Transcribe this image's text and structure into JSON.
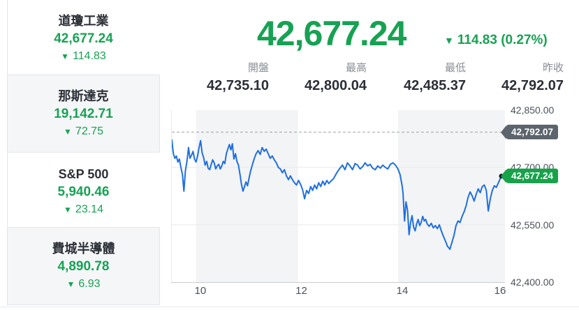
{
  "icons": {
    "down_triangle": "▼"
  },
  "colors": {
    "green": "#17a253",
    "line_blue": "#1e6fe0",
    "badge_dark": "#5c646d",
    "badge_green": "#18a24b",
    "band": "#f3f4f5",
    "grid": "#e9eaec",
    "dashed": "#9aa0a8",
    "dot": "#17191c"
  },
  "sidebar": {
    "items": [
      {
        "name": "道瓊工業",
        "value": "42,677.24",
        "change": "114.83"
      },
      {
        "name": "那斯達克",
        "value": "19,142.71",
        "change": "72.75"
      },
      {
        "name": "S&P 500",
        "value": "5,940.46",
        "change": "23.14"
      },
      {
        "name": "費城半導體",
        "value": "4,890.78",
        "change": "6.93"
      }
    ]
  },
  "headline": {
    "value": "42,677.24",
    "change": "114.83 (0.27%)"
  },
  "stats": {
    "items": [
      {
        "label": "開盤",
        "value": "42,735.10"
      },
      {
        "label": "最高",
        "value": "42,800.04"
      },
      {
        "label": "最低",
        "value": "42,485.37"
      },
      {
        "label": "昨收",
        "value": "42,792.07"
      }
    ]
  },
  "chart_data": {
    "type": "line",
    "title": "道瓊工業",
    "xlabel": "",
    "ylabel": "",
    "x_domain": [
      9.42,
      16.02
    ],
    "y_domain": [
      42400,
      42850
    ],
    "x_ticks": [
      10,
      12,
      14,
      16
    ],
    "y_ticks": [
      {
        "value": 42850,
        "label": "42,850.00",
        "grid": false
      },
      {
        "value": 42700,
        "label": "42,700.00",
        "grid": true
      },
      {
        "value": 42550,
        "label": "42,550.00",
        "grid": true
      },
      {
        "value": 42400,
        "label": "42,400.00",
        "grid": false
      }
    ],
    "bands": [
      [
        9.9,
        11.92
      ],
      [
        13.9,
        16.02
      ]
    ],
    "prev_close": 42792.07,
    "prev_close_label": "42,792.07",
    "last": 42677.24,
    "last_label": "42,677.24",
    "series": [
      {
        "name": "道瓊工業",
        "points": [
          [
            9.42,
            42772
          ],
          [
            9.45,
            42736
          ],
          [
            9.48,
            42724
          ],
          [
            9.51,
            42730
          ],
          [
            9.54,
            42714
          ],
          [
            9.57,
            42722
          ],
          [
            9.6,
            42700
          ],
          [
            9.63,
            42682
          ],
          [
            9.66,
            42638
          ],
          [
            9.69,
            42692
          ],
          [
            9.72,
            42716
          ],
          [
            9.75,
            42752
          ],
          [
            9.78,
            42724
          ],
          [
            9.81,
            42732
          ],
          [
            9.84,
            42742
          ],
          [
            9.87,
            42722
          ],
          [
            9.9,
            42714
          ],
          [
            9.93,
            42730
          ],
          [
            9.96,
            42752
          ],
          [
            9.99,
            42770
          ],
          [
            10.02,
            42738
          ],
          [
            10.05,
            42726
          ],
          [
            10.08,
            42706
          ],
          [
            10.11,
            42716
          ],
          [
            10.14,
            42698
          ],
          [
            10.17,
            42694
          ],
          [
            10.2,
            42708
          ],
          [
            10.23,
            42720
          ],
          [
            10.26,
            42712
          ],
          [
            10.29,
            42696
          ],
          [
            10.32,
            42704
          ],
          [
            10.35,
            42708
          ],
          [
            10.38,
            42696
          ],
          [
            10.41,
            42704
          ],
          [
            10.44,
            42716
          ],
          [
            10.47,
            42710
          ],
          [
            10.5,
            42736
          ],
          [
            10.53,
            42748
          ],
          [
            10.56,
            42760
          ],
          [
            10.59,
            42746
          ],
          [
            10.62,
            42762
          ],
          [
            10.65,
            42722
          ],
          [
            10.68,
            42736
          ],
          [
            10.71,
            42716
          ],
          [
            10.74,
            42706
          ],
          [
            10.77,
            42682
          ],
          [
            10.8,
            42656
          ],
          [
            10.83,
            42638
          ],
          [
            10.86,
            42650
          ],
          [
            10.89,
            42662
          ],
          [
            10.92,
            42652
          ],
          [
            10.95,
            42672
          ],
          [
            10.98,
            42690
          ],
          [
            11.01,
            42704
          ],
          [
            11.05,
            42722
          ],
          [
            11.09,
            42736
          ],
          [
            11.13,
            42744
          ],
          [
            11.17,
            42734
          ],
          [
            11.21,
            42752
          ],
          [
            11.25,
            42742
          ],
          [
            11.29,
            42748
          ],
          [
            11.33,
            42736
          ],
          [
            11.37,
            42724
          ],
          [
            11.41,
            42730
          ],
          [
            11.45,
            42720
          ],
          [
            11.49,
            42712
          ],
          [
            11.53,
            42700
          ],
          [
            11.57,
            42696
          ],
          [
            11.61,
            42686
          ],
          [
            11.65,
            42694
          ],
          [
            11.69,
            42678
          ],
          [
            11.73,
            42668
          ],
          [
            11.77,
            42678
          ],
          [
            11.81,
            42668
          ],
          [
            11.85,
            42660
          ],
          [
            11.89,
            42654
          ],
          [
            11.93,
            42666
          ],
          [
            11.97,
            42656
          ],
          [
            12.01,
            42642
          ],
          [
            12.05,
            42618
          ],
          [
            12.09,
            42640
          ],
          [
            12.13,
            42632
          ],
          [
            12.17,
            42650
          ],
          [
            12.21,
            42640
          ],
          [
            12.25,
            42654
          ],
          [
            12.29,
            42644
          ],
          [
            12.33,
            42660
          ],
          [
            12.37,
            42650
          ],
          [
            12.41,
            42664
          ],
          [
            12.45,
            42654
          ],
          [
            12.49,
            42666
          ],
          [
            12.53,
            42658
          ],
          [
            12.57,
            42664
          ],
          [
            12.62,
            42670
          ],
          [
            12.68,
            42684
          ],
          [
            12.74,
            42696
          ],
          [
            12.8,
            42706
          ],
          [
            12.85,
            42694
          ],
          [
            12.9,
            42712
          ],
          [
            12.95,
            42704
          ],
          [
            13.0,
            42694
          ],
          [
            13.05,
            42710
          ],
          [
            13.1,
            42706
          ],
          [
            13.15,
            42696
          ],
          [
            13.2,
            42702
          ],
          [
            13.25,
            42712
          ],
          [
            13.3,
            42704
          ],
          [
            13.35,
            42708
          ],
          [
            13.4,
            42698
          ],
          [
            13.45,
            42694
          ],
          [
            13.5,
            42704
          ],
          [
            13.55,
            42698
          ],
          [
            13.6,
            42706
          ],
          [
            13.65,
            42700
          ],
          [
            13.7,
            42696
          ],
          [
            13.75,
            42708
          ],
          [
            13.8,
            42712
          ],
          [
            13.85,
            42706
          ],
          [
            13.9,
            42696
          ],
          [
            13.94,
            42682
          ],
          [
            13.98,
            42654
          ],
          [
            14.0,
            42634
          ],
          [
            14.03,
            42560
          ],
          [
            14.06,
            42610
          ],
          [
            14.09,
            42588
          ],
          [
            14.12,
            42524
          ],
          [
            14.15,
            42556
          ],
          [
            14.18,
            42574
          ],
          [
            14.21,
            42544
          ],
          [
            14.24,
            42534
          ],
          [
            14.27,
            42552
          ],
          [
            14.3,
            42564
          ],
          [
            14.33,
            42548
          ],
          [
            14.36,
            42556
          ],
          [
            14.39,
            42572
          ],
          [
            14.42,
            42560
          ],
          [
            14.45,
            42564
          ],
          [
            14.48,
            42552
          ],
          [
            14.52,
            42546
          ],
          [
            14.56,
            42554
          ],
          [
            14.6,
            42542
          ],
          [
            14.64,
            42548
          ],
          [
            14.68,
            42540
          ],
          [
            14.72,
            42550
          ],
          [
            14.76,
            42534
          ],
          [
            14.8,
            42520
          ],
          [
            14.84,
            42508
          ],
          [
            14.88,
            42494
          ],
          [
            14.93,
            42486
          ],
          [
            14.97,
            42504
          ],
          [
            15.01,
            42522
          ],
          [
            15.05,
            42548
          ],
          [
            15.09,
            42560
          ],
          [
            15.13,
            42556
          ],
          [
            15.17,
            42572
          ],
          [
            15.21,
            42584
          ],
          [
            15.25,
            42600
          ],
          [
            15.29,
            42622
          ],
          [
            15.33,
            42636
          ],
          [
            15.37,
            42626
          ],
          [
            15.41,
            42612
          ],
          [
            15.45,
            42630
          ],
          [
            15.49,
            42644
          ],
          [
            15.53,
            42634
          ],
          [
            15.57,
            42650
          ],
          [
            15.61,
            42654
          ],
          [
            15.65,
            42640
          ],
          [
            15.69,
            42586
          ],
          [
            15.73,
            42618
          ],
          [
            15.77,
            42640
          ],
          [
            15.81,
            42652
          ],
          [
            15.85,
            42648
          ],
          [
            15.89,
            42660
          ],
          [
            15.95,
            42677.24
          ]
        ]
      }
    ]
  }
}
